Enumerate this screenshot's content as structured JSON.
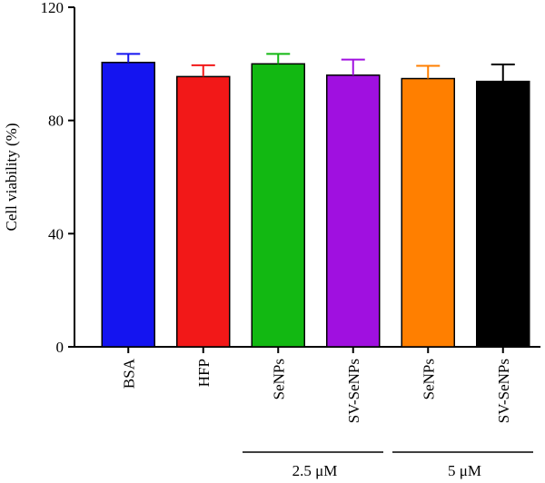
{
  "chart_data": {
    "type": "bar",
    "ylabel": "Cell viability (%)",
    "ylim": [
      0,
      120
    ],
    "yticks": [
      0,
      40,
      80,
      120
    ],
    "categories": [
      "BSA",
      "HFP",
      "SeNPs",
      "SV-SeNPs",
      "SeNPs",
      "SV-SeNPs"
    ],
    "values": [
      100.5,
      95.5,
      100,
      96,
      94.8,
      93.8
    ],
    "errors": [
      3,
      4,
      3.5,
      5.5,
      4.5,
      6
    ],
    "colors": [
      "#1414f0",
      "#f21818",
      "#12b812",
      "#a010e0",
      "#ff7f00",
      "#000000"
    ],
    "groups": [
      {
        "label": "2.5 μM",
        "start": 2,
        "end": 3
      },
      {
        "label": "5 μM",
        "start": 4,
        "end": 5
      }
    ],
    "grid": false
  }
}
